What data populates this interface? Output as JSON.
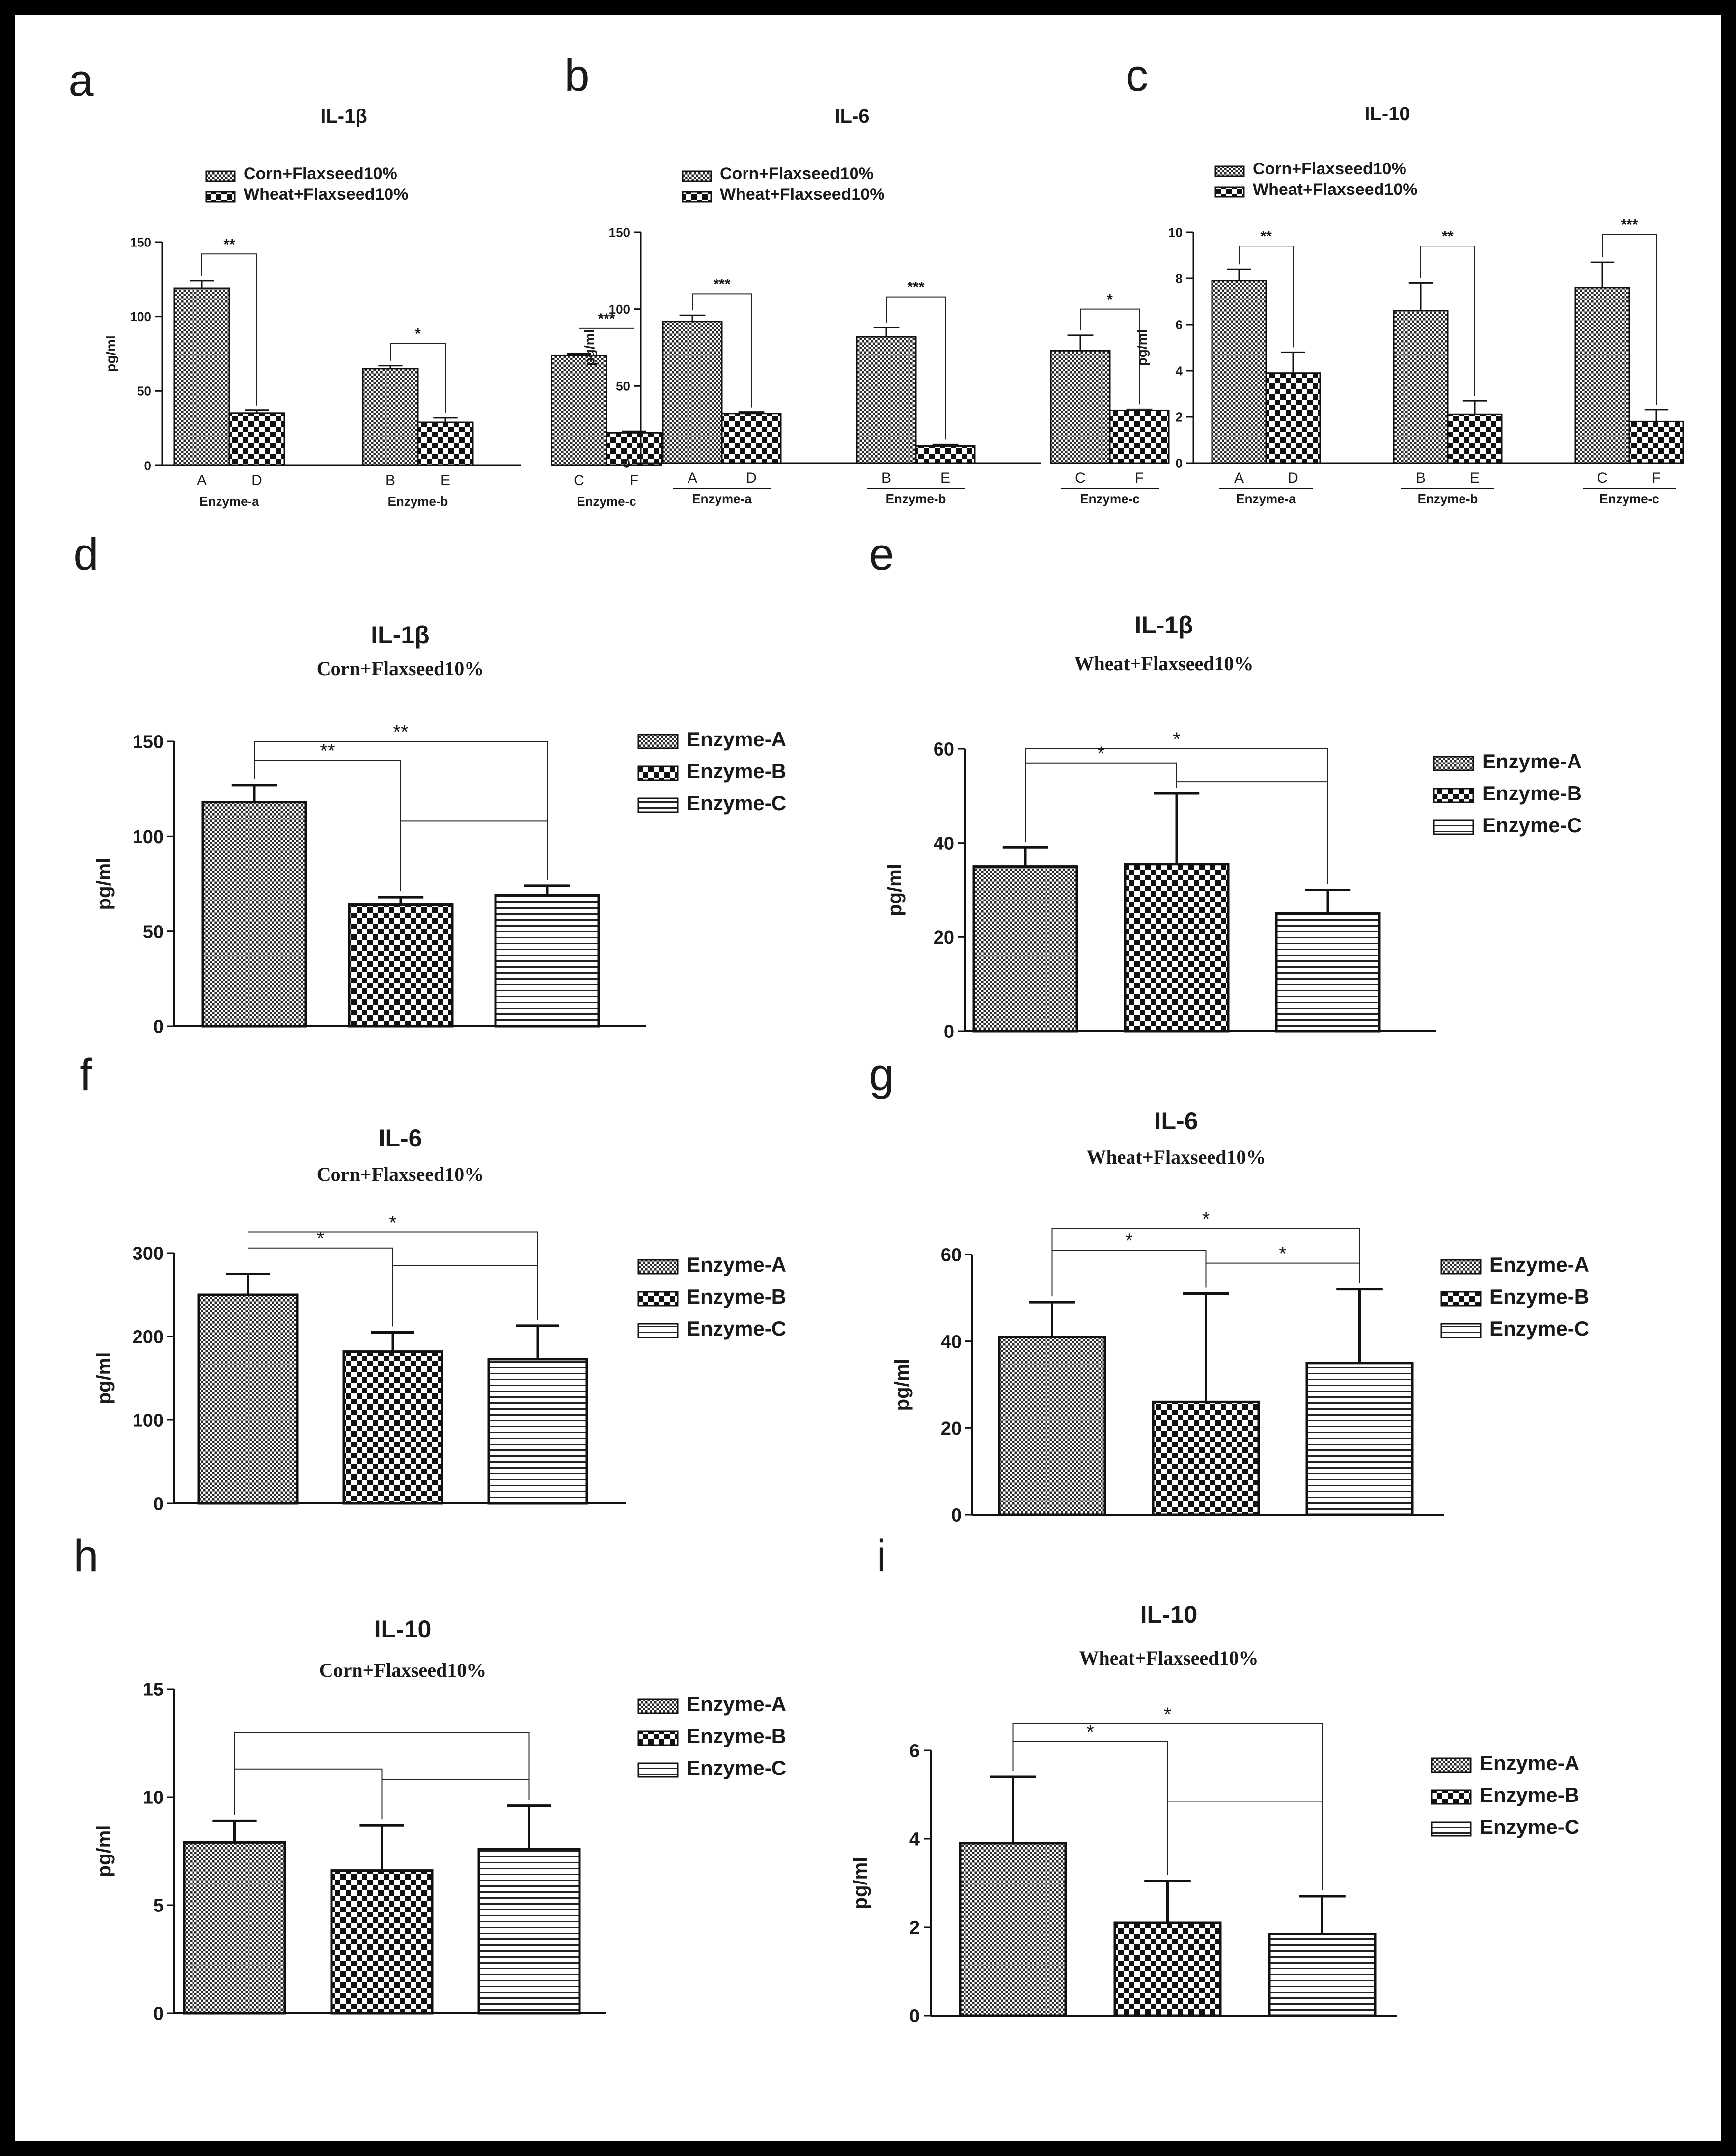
{
  "colors": {
    "border": "#000000",
    "ink": "#1a1a1a",
    "fill": "#ffffff",
    "panel_bg": "#ffffff"
  },
  "chart_data": [
    {
      "panel": "a",
      "type": "bar",
      "title": "IL-1β",
      "style": "small",
      "ylabel": "pg/ml",
      "ylim": [
        0,
        150
      ],
      "yticks": [
        0,
        50,
        100,
        150
      ],
      "legend": [
        "Corn+Flaxseed10%",
        "Wheat+Flaxseed10%"
      ],
      "bars": [
        {
          "label": "A",
          "value": 119,
          "err": 5,
          "pattern": 0
        },
        {
          "label": "D",
          "value": 35,
          "err": 2,
          "pattern": 1
        },
        {
          "label": "B",
          "value": 65,
          "err": 2,
          "pattern": 0
        },
        {
          "label": "E",
          "value": 29,
          "err": 3,
          "pattern": 1
        },
        {
          "label": "C",
          "value": 74,
          "err": 1,
          "pattern": 0
        },
        {
          "label": "F",
          "value": 22,
          "err": 1,
          "pattern": 1
        }
      ],
      "groups": [
        "Enzyme-a",
        "Enzyme-b",
        "Enzyme-c"
      ],
      "sig": [
        {
          "from": 0,
          "to": 1,
          "y": 142,
          "label": "**"
        },
        {
          "from": 2,
          "to": 3,
          "y": 82,
          "label": "*"
        },
        {
          "from": 4,
          "to": 5,
          "y": 92,
          "label": "***"
        }
      ]
    },
    {
      "panel": "b",
      "type": "bar",
      "title": "IL-6",
      "style": "small",
      "ylabel": "pg/ml",
      "ylim": [
        0,
        150
      ],
      "yticks": [
        0,
        50,
        100,
        150
      ],
      "legend": [
        "Corn+Flaxseed10%",
        "Wheat+Flaxseed10%"
      ],
      "bars": [
        {
          "label": "A",
          "value": 92,
          "err": 4,
          "pattern": 0
        },
        {
          "label": "D",
          "value": 32,
          "err": 1,
          "pattern": 1
        },
        {
          "label": "B",
          "value": 82,
          "err": 6,
          "pattern": 0
        },
        {
          "label": "E",
          "value": 11,
          "err": 1,
          "pattern": 1
        },
        {
          "label": "C",
          "value": 73,
          "err": 10,
          "pattern": 0
        },
        {
          "label": "F",
          "value": 34,
          "err": 1,
          "pattern": 1
        }
      ],
      "groups": [
        "Enzyme-a",
        "Enzyme-b",
        "Enzyme-c"
      ],
      "sig": [
        {
          "from": 0,
          "to": 1,
          "y": 110,
          "label": "***"
        },
        {
          "from": 2,
          "to": 3,
          "y": 108,
          "label": "***"
        },
        {
          "from": 4,
          "to": 5,
          "y": 100,
          "label": "*"
        }
      ]
    },
    {
      "panel": "c",
      "type": "bar",
      "title": "IL-10",
      "style": "small",
      "ylabel": "pg/ml",
      "ylim": [
        0,
        10
      ],
      "yticks": [
        0,
        2,
        4,
        6,
        8,
        10
      ],
      "legend": [
        "Corn+Flaxseed10%",
        "Wheat+Flaxseed10%"
      ],
      "bars": [
        {
          "label": "A",
          "value": 7.9,
          "err": 0.5,
          "pattern": 0
        },
        {
          "label": "D",
          "value": 3.9,
          "err": 0.9,
          "pattern": 1
        },
        {
          "label": "B",
          "value": 6.6,
          "err": 1.2,
          "pattern": 0
        },
        {
          "label": "E",
          "value": 2.1,
          "err": 0.6,
          "pattern": 1
        },
        {
          "label": "C",
          "value": 7.6,
          "err": 1.1,
          "pattern": 0
        },
        {
          "label": "F",
          "value": 1.8,
          "err": 0.5,
          "pattern": 1
        }
      ],
      "groups": [
        "Enzyme-a",
        "Enzyme-b",
        "Enzyme-c"
      ],
      "sig": [
        {
          "from": 0,
          "to": 1,
          "y": 9.4,
          "label": "**"
        },
        {
          "from": 2,
          "to": 3,
          "y": 9.4,
          "label": "**"
        },
        {
          "from": 4,
          "to": 5,
          "y": 9.9,
          "label": "***"
        }
      ]
    },
    {
      "panel": "d",
      "type": "bar",
      "title": "IL-1β",
      "subtitle": "Corn+Flaxseed10%",
      "style": "large",
      "ylabel": "pg/ml",
      "ylim": [
        0,
        150
      ],
      "yticks": [
        0,
        50,
        100,
        150
      ],
      "legend": [
        "Enzyme-A",
        "Enzyme-B",
        "Enzyme-C"
      ],
      "bars": [
        {
          "label": "",
          "value": 118,
          "err": 9,
          "pattern": 0
        },
        {
          "label": "",
          "value": 64,
          "err": 4,
          "pattern": 1
        },
        {
          "label": "",
          "value": 69,
          "err": 5,
          "pattern": 2
        }
      ],
      "sig": [
        {
          "type": "outer",
          "from": 0,
          "to": 2,
          "y": 150,
          "label": "**"
        },
        {
          "type": "nested",
          "from": 0,
          "to": 1,
          "y": 140,
          "ymid": 108,
          "far": 2,
          "label": "**"
        }
      ]
    },
    {
      "panel": "e",
      "type": "bar",
      "title": "IL-1β",
      "subtitle": "Wheat+Flaxseed10%",
      "style": "large",
      "ylabel": "pg/ml",
      "ylim": [
        0,
        60
      ],
      "yticks": [
        0,
        20,
        40,
        60
      ],
      "legend": [
        "Enzyme-A",
        "Enzyme-B",
        "Enzyme-C"
      ],
      "bars": [
        {
          "label": "",
          "value": 35,
          "err": 4,
          "pattern": 0
        },
        {
          "label": "",
          "value": 35.5,
          "err": 15,
          "pattern": 1
        },
        {
          "label": "",
          "value": 25,
          "err": 5,
          "pattern": 2
        }
      ],
      "sig": [
        {
          "type": "outer",
          "from": 0,
          "to": 2,
          "y": 60,
          "label": "*"
        },
        {
          "type": "nested",
          "from": 0,
          "to": 1,
          "y": 57,
          "ymid": 53,
          "far": 2,
          "label": "*"
        }
      ]
    },
    {
      "panel": "f",
      "type": "bar",
      "title": "IL-6",
      "subtitle": "Corn+Flaxseed10%",
      "style": "large",
      "ylabel": "pg/ml",
      "ylim": [
        0,
        300
      ],
      "yticks": [
        0,
        100,
        200,
        300
      ],
      "legend": [
        "Enzyme-A",
        "Enzyme-B",
        "Enzyme-C"
      ],
      "bars": [
        {
          "label": "",
          "value": 250,
          "err": 25,
          "pattern": 0
        },
        {
          "label": "",
          "value": 182,
          "err": 23,
          "pattern": 1
        },
        {
          "label": "",
          "value": 173,
          "err": 40,
          "pattern": 2
        }
      ],
      "sig": [
        {
          "type": "outer",
          "from": 0,
          "to": 2,
          "y": 325,
          "label": "*"
        },
        {
          "type": "nested",
          "from": 0,
          "to": 1,
          "y": 306,
          "ymid": 285,
          "far": 2,
          "label": "*"
        }
      ]
    },
    {
      "panel": "g",
      "type": "bar",
      "title": "IL-6",
      "subtitle": "Wheat+Flaxseed10%",
      "style": "large",
      "ylabel": "pg/ml",
      "ylim": [
        0,
        60
      ],
      "yticks": [
        0,
        20,
        40,
        60
      ],
      "legend": [
        "Enzyme-A",
        "Enzyme-B",
        "Enzyme-C"
      ],
      "bars": [
        {
          "label": "",
          "value": 41,
          "err": 8,
          "pattern": 0
        },
        {
          "label": "",
          "value": 26,
          "err": 25,
          "pattern": 1
        },
        {
          "label": "",
          "value": 35,
          "err": 17,
          "pattern": 2
        }
      ],
      "sig": [
        {
          "type": "outer",
          "from": 0,
          "to": 2,
          "y": 66,
          "label": "*"
        },
        {
          "type": "nested",
          "from": 0,
          "to": 1,
          "y": 61,
          "ymid": 58,
          "far": 2,
          "label": "*",
          "label2": "*"
        }
      ]
    },
    {
      "panel": "h",
      "type": "bar",
      "title": "IL-10",
      "subtitle": "Corn+Flaxseed10%",
      "style": "large",
      "ylabel": "pg/ml",
      "ylim": [
        0,
        15
      ],
      "yticks": [
        0,
        5,
        10,
        15
      ],
      "legend": [
        "Enzyme-A",
        "Enzyme-B",
        "Enzyme-C"
      ],
      "bars": [
        {
          "label": "",
          "value": 7.9,
          "err": 1.0,
          "pattern": 0
        },
        {
          "label": "",
          "value": 6.6,
          "err": 2.1,
          "pattern": 1
        },
        {
          "label": "",
          "value": 7.6,
          "err": 2.0,
          "pattern": 2
        }
      ],
      "sig": [
        {
          "type": "outer",
          "from": 0,
          "to": 2,
          "y": 13.0,
          "label": ""
        },
        {
          "type": "nested",
          "from": 0,
          "to": 1,
          "y": 11.3,
          "ymid": 10.8,
          "far": 2,
          "label": ""
        }
      ]
    },
    {
      "panel": "i",
      "type": "bar",
      "title": "IL-10",
      "subtitle": "Wheat+Flaxseed10%",
      "style": "large",
      "ylabel": "pg/ml",
      "ylim": [
        0,
        6
      ],
      "yticks": [
        0,
        2,
        4,
        6
      ],
      "legend": [
        "Enzyme-A",
        "Enzyme-B",
        "Enzyme-C"
      ],
      "bars": [
        {
          "label": "",
          "value": 3.9,
          "err": 1.5,
          "pattern": 0
        },
        {
          "label": "",
          "value": 2.1,
          "err": 0.95,
          "pattern": 1
        },
        {
          "label": "",
          "value": 1.85,
          "err": 0.85,
          "pattern": 2
        }
      ],
      "sig": [
        {
          "type": "outer",
          "from": 0,
          "to": 2,
          "y": 6.6,
          "label": "*"
        },
        {
          "type": "nested",
          "from": 0,
          "to": 1,
          "y": 6.2,
          "ymid": 4.85,
          "far": 2,
          "label": "*"
        }
      ]
    }
  ]
}
